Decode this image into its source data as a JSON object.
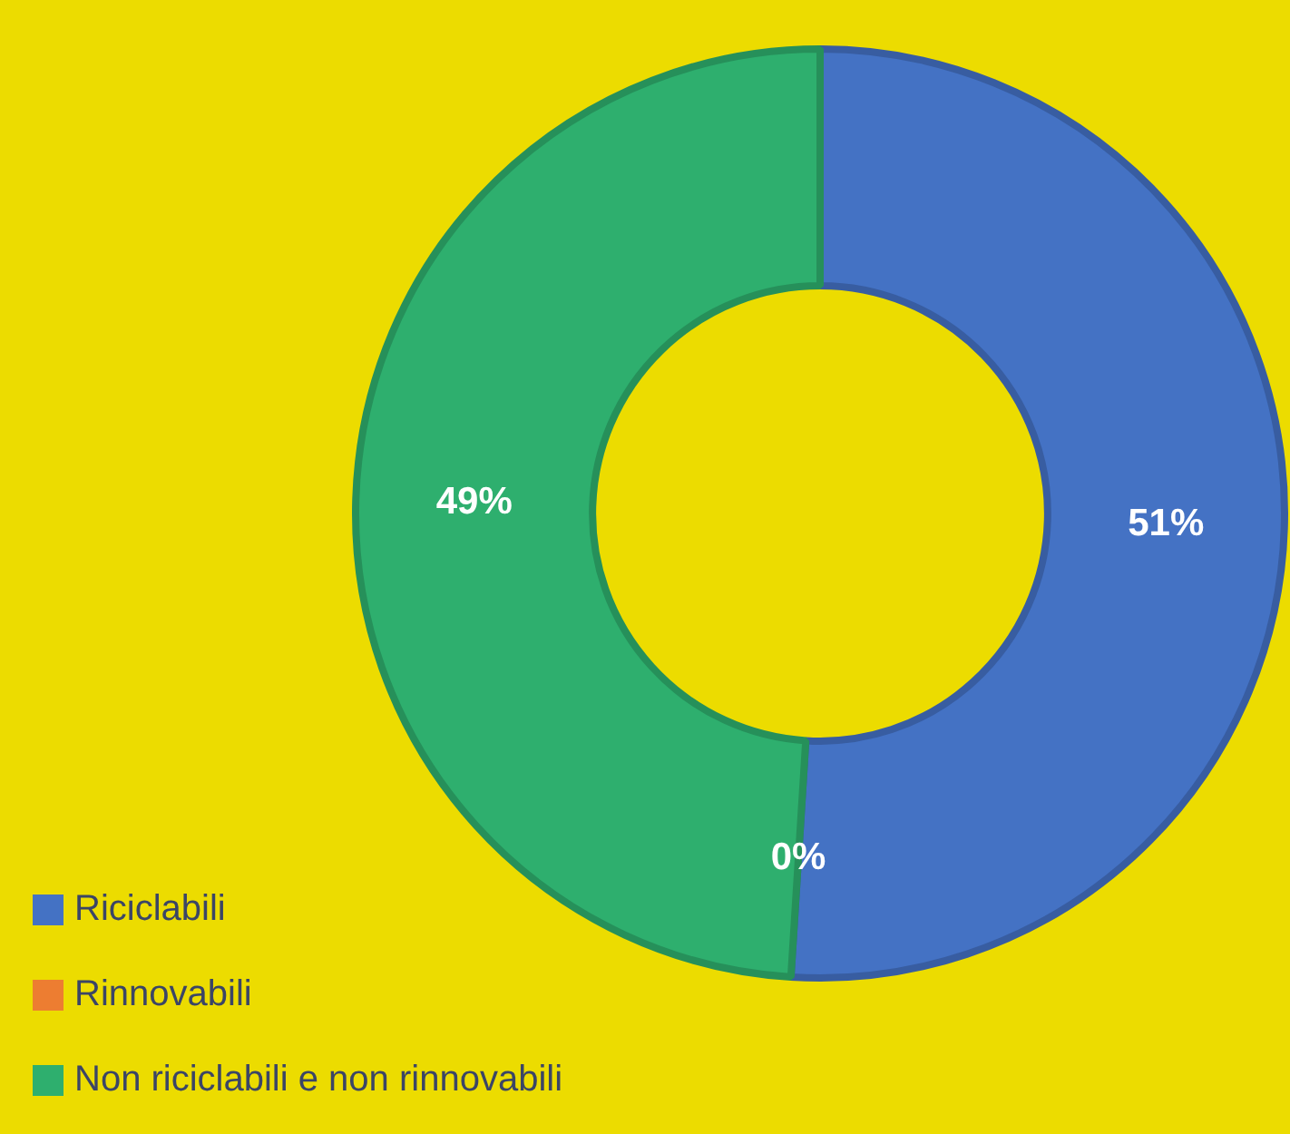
{
  "chart_data": {
    "type": "donut",
    "categories": [
      "Riciclabili",
      "Rinnovabili",
      "Non riciclabili e non rinnovabili"
    ],
    "values": [
      51,
      0,
      49
    ],
    "colors": [
      "#4472c4",
      "#ed7d31",
      "#2eaf6e"
    ],
    "value_labels": [
      "51%",
      "0%",
      "49%"
    ],
    "legend": "bottom left"
  }
}
